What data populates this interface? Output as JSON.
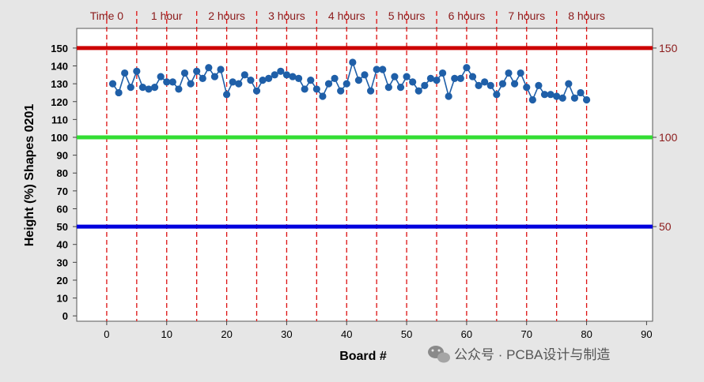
{
  "chart_data": {
    "type": "line",
    "ylabel": "Height (%) Shapes 0201",
    "xlabel": "Board #",
    "xlim": [
      -5,
      91
    ],
    "ylim": [
      -3,
      161
    ],
    "x_ticks": [
      0,
      10,
      20,
      30,
      40,
      50,
      60,
      70,
      80,
      90
    ],
    "y_ticks": [
      0,
      10,
      20,
      30,
      40,
      50,
      60,
      70,
      80,
      90,
      100,
      110,
      120,
      130,
      140,
      150
    ],
    "time_markers": [
      {
        "x": 0,
        "label": "Time 0"
      },
      {
        "x": 5,
        "label": ""
      },
      {
        "x": 10,
        "label": "1 hour"
      },
      {
        "x": 15,
        "label": ""
      },
      {
        "x": 20,
        "label": "2 hours"
      },
      {
        "x": 25,
        "label": ""
      },
      {
        "x": 30,
        "label": "3 hours"
      },
      {
        "x": 35,
        "label": ""
      },
      {
        "x": 40,
        "label": "4 hours"
      },
      {
        "x": 45,
        "label": ""
      },
      {
        "x": 50,
        "label": "5 hours"
      },
      {
        "x": 55,
        "label": ""
      },
      {
        "x": 60,
        "label": "6 hours"
      },
      {
        "x": 65,
        "label": ""
      },
      {
        "x": 70,
        "label": "7 hours"
      },
      {
        "x": 75,
        "label": ""
      },
      {
        "x": 80,
        "label": "8 hours"
      }
    ],
    "reference_lines": [
      {
        "y": 150,
        "label": "150",
        "color": "#cc0000"
      },
      {
        "y": 100,
        "label": "100",
        "color": "#33dd33"
      },
      {
        "y": 50,
        "label": "50",
        "color": "#0000dd"
      }
    ],
    "series": [
      {
        "color": "#1f5fa8",
        "x": [
          1,
          2,
          3,
          4,
          5,
          6,
          7,
          8,
          9,
          10,
          11,
          12,
          13,
          14,
          15,
          16,
          17,
          18,
          19,
          20,
          21,
          22,
          23,
          24,
          25,
          26,
          27,
          28,
          29,
          30,
          31,
          32,
          33,
          34,
          35,
          36,
          37,
          38,
          39,
          40,
          41,
          42,
          43,
          44,
          45,
          46,
          47,
          48,
          49,
          50,
          51,
          52,
          53,
          54,
          55,
          56,
          57,
          58,
          59,
          60,
          61,
          62,
          63,
          64,
          65,
          66,
          67,
          68,
          69,
          70,
          71,
          72,
          73,
          74,
          75,
          76,
          77,
          78,
          79,
          80
        ],
        "y": [
          130,
          125,
          136,
          128,
          137,
          128,
          127,
          128,
          134,
          131,
          131,
          127,
          136,
          130,
          137,
          133,
          139,
          134,
          138,
          124,
          131,
          130,
          135,
          132,
          126,
          132,
          133,
          135,
          137,
          135,
          134,
          133,
          127,
          132,
          127,
          123,
          130,
          133,
          126,
          130,
          142,
          132,
          135,
          126,
          138,
          138,
          128,
          134,
          128,
          134,
          131,
          126,
          129,
          133,
          132,
          136,
          123,
          133,
          133,
          139,
          134,
          129,
          131,
          129,
          124,
          130,
          136,
          130,
          136,
          128,
          121,
          129,
          124,
          124,
          123,
          122,
          130,
          122,
          125,
          121
        ]
      }
    ]
  },
  "watermark": {
    "text": "公众号 · PCBA设计与制造",
    "icon": "wechat-icon"
  }
}
